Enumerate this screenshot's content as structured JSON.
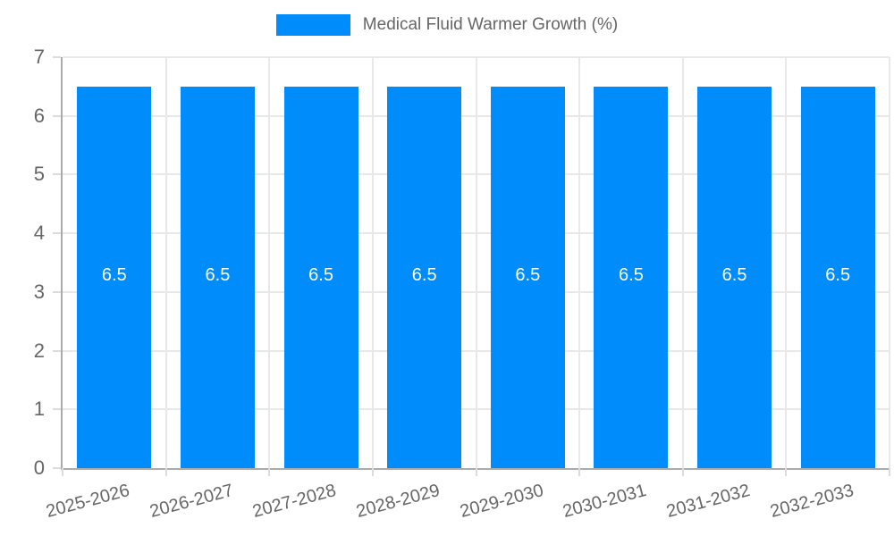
{
  "legend": {
    "label": "Medical Fluid Warmer Growth (%)"
  },
  "colors": {
    "bar": "#008CFA",
    "axis_line": "#ababab",
    "gridline": "#e8e8e8",
    "tick_mark": "#dcdcdc",
    "tick_text": "#666666",
    "legend_text": "#666666",
    "bar_label_text": "#ffffff",
    "background": "#ffffff"
  },
  "chart_data": {
    "type": "bar",
    "title": "Medical Fluid Warmer Growth (%)",
    "categories": [
      "2025-2026",
      "2026-2027",
      "2027-2028",
      "2028-2029",
      "2029-2030",
      "2030-2031",
      "2031-2032",
      "2032-2033"
    ],
    "values": [
      6.5,
      6.5,
      6.5,
      6.5,
      6.5,
      6.5,
      6.5,
      6.5
    ],
    "bar_labels": [
      "6.5",
      "6.5",
      "6.5",
      "6.5",
      "6.5",
      "6.5",
      "6.5",
      "6.5"
    ],
    "xlabel": "",
    "ylabel": "",
    "ylim": [
      0,
      7
    ],
    "yticks": [
      0,
      1,
      2,
      3,
      4,
      5,
      6,
      7
    ],
    "grid": true,
    "legend_position": "top",
    "bar_value_label_position": "center"
  }
}
